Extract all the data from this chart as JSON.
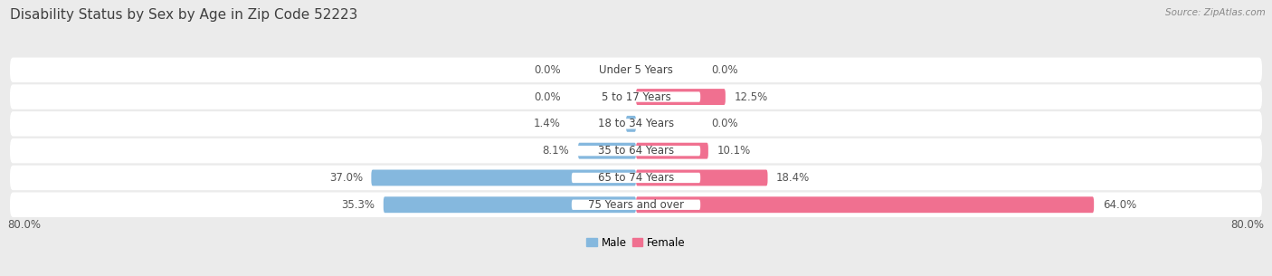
{
  "title": "Disability Status by Sex by Age in Zip Code 52223",
  "source": "Source: ZipAtlas.com",
  "categories": [
    "Under 5 Years",
    "5 to 17 Years",
    "18 to 34 Years",
    "35 to 64 Years",
    "65 to 74 Years",
    "75 Years and over"
  ],
  "male_values": [
    0.0,
    0.0,
    1.4,
    8.1,
    37.0,
    35.3
  ],
  "female_values": [
    0.0,
    12.5,
    0.0,
    10.1,
    18.4,
    64.0
  ],
  "male_color": "#85B8DE",
  "female_color": "#F07090",
  "axis_limit": 80.0,
  "background_color": "#EBEBEB",
  "row_bg_color": "#F5F5F5",
  "label_color": "#555555",
  "title_color": "#404040",
  "title_fontsize": 11,
  "bar_height": 0.6,
  "value_fontsize": 8.5,
  "cat_fontsize": 8.5,
  "legend_male": "Male",
  "legend_female": "Female",
  "axis_bottom_label": "80.0%",
  "xlim_extra": 8
}
